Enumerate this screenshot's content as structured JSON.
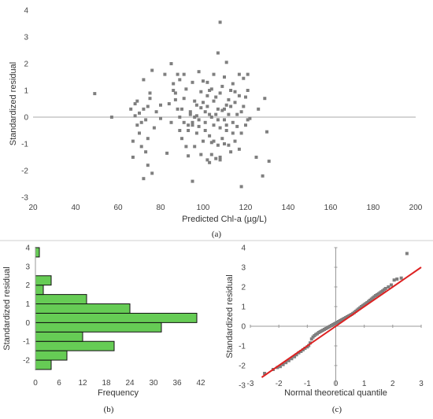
{
  "chart_data": [
    {
      "type": "scatter",
      "panel_label": "a",
      "xlabel": "Predicted Chl-a (µg/L)",
      "ylabel": "Standardized residual",
      "xlim": [
        20,
        200
      ],
      "ylim": [
        -3,
        4
      ],
      "xticks": [
        20,
        40,
        60,
        80,
        100,
        120,
        140,
        160,
        180,
        200
      ],
      "yticks": [
        -3,
        -2,
        -1,
        0,
        1,
        2,
        3,
        4
      ],
      "reference_line_y": 0,
      "marker_color": "#7f7f7f",
      "points": [
        [
          49,
          0.88
        ],
        [
          57,
          0
        ],
        [
          66,
          0.3
        ],
        [
          67,
          -1.5
        ],
        [
          67,
          -0.9
        ],
        [
          68,
          0.5
        ],
        [
          68,
          0.05
        ],
        [
          69,
          -0.3
        ],
        [
          69,
          0.6
        ],
        [
          70,
          -0.6
        ],
        [
          70,
          0.15
        ],
        [
          71,
          -1.1
        ],
        [
          71,
          -0.2
        ],
        [
          72,
          1.4
        ],
        [
          72,
          0.3
        ],
        [
          72,
          -2.3
        ],
        [
          73,
          -0.1
        ],
        [
          73,
          -1.3
        ],
        [
          74,
          0.4
        ],
        [
          74,
          -1.8
        ],
        [
          74,
          -0.8
        ],
        [
          75,
          0.7
        ],
        [
          75,
          0.9
        ],
        [
          76,
          1.75
        ],
        [
          76,
          -2.1
        ],
        [
          77,
          -0.4
        ],
        [
          78,
          0.2
        ],
        [
          80,
          0.45
        ],
        [
          80,
          -0.05
        ],
        [
          82,
          1.6
        ],
        [
          83,
          -1.35
        ],
        [
          84,
          0.5
        ],
        [
          85,
          -0.2
        ],
        [
          85,
          2
        ],
        [
          86,
          1.25
        ],
        [
          86,
          1.0
        ],
        [
          87,
          0.9
        ],
        [
          87,
          0.65
        ],
        [
          88,
          1.6
        ],
        [
          88,
          0.3
        ],
        [
          89,
          -0.5
        ],
        [
          89,
          1.4
        ],
        [
          89,
          0.0
        ],
        [
          90,
          -0.8
        ],
        [
          90,
          0.3
        ],
        [
          91,
          1.6
        ],
        [
          91,
          -0.2
        ],
        [
          91,
          0.7
        ],
        [
          92,
          -1.1
        ],
        [
          92,
          1.05
        ],
        [
          93,
          -0.5
        ],
        [
          93,
          -1.45
        ],
        [
          93,
          -0.3
        ],
        [
          94,
          0.1
        ],
        [
          94,
          0.2
        ],
        [
          95,
          -0.2
        ],
        [
          95,
          -0.3
        ],
        [
          95,
          1.3
        ],
        [
          95,
          -2.4
        ],
        [
          96,
          -1.1
        ],
        [
          96,
          0.6
        ],
        [
          97,
          0.45
        ],
        [
          97,
          -0.6
        ],
        [
          97,
          0.05
        ],
        [
          98,
          -0.35
        ],
        [
          98,
          1.7
        ],
        [
          98,
          -0.1
        ],
        [
          99,
          0.95
        ],
        [
          99,
          -1.4
        ],
        [
          99,
          0.35
        ],
        [
          100,
          -0.9
        ],
        [
          100,
          0.55
        ],
        [
          100,
          1.35
        ],
        [
          101,
          0.2
        ],
        [
          101,
          -0.2
        ],
        [
          101,
          -0.5
        ],
        [
          102,
          -1.6
        ],
        [
          102,
          1.3
        ],
        [
          102,
          0.4
        ],
        [
          103,
          -0.7
        ],
        [
          103,
          -1.7
        ],
        [
          103,
          1.0
        ],
        [
          103,
          0.1
        ],
        [
          104,
          1.05
        ],
        [
          104,
          0.0
        ],
        [
          104,
          -0.95
        ],
        [
          104,
          -1.4
        ],
        [
          105,
          1.6
        ],
        [
          105,
          -0.9
        ],
        [
          105,
          0.6
        ],
        [
          105,
          -0.3
        ],
        [
          106,
          -1.55
        ],
        [
          106,
          0.75
        ],
        [
          106,
          0.1
        ],
        [
          107,
          2.4
        ],
        [
          107,
          -0.1
        ],
        [
          107,
          -1.05
        ],
        [
          107,
          0.3
        ],
        [
          108,
          -1.6
        ],
        [
          108,
          0.9
        ],
        [
          108,
          3.55
        ],
        [
          108,
          -1.5
        ],
        [
          108,
          -0.4
        ],
        [
          109,
          1.15
        ],
        [
          109,
          0.25
        ],
        [
          109,
          -0.8
        ],
        [
          110,
          0.3
        ],
        [
          110,
          -1.0
        ],
        [
          110,
          1.5
        ],
        [
          111,
          -0.5
        ],
        [
          111,
          0.45
        ],
        [
          111,
          2.05
        ],
        [
          111,
          -0.3
        ],
        [
          112,
          -1.05
        ],
        [
          112,
          0.65
        ],
        [
          112,
          0.1
        ],
        [
          113,
          1.0
        ],
        [
          113,
          -1.3
        ],
        [
          113,
          0.4
        ],
        [
          114,
          -0.2
        ],
        [
          114,
          1.25
        ],
        [
          114,
          -0.6
        ],
        [
          115,
          0.55
        ],
        [
          115,
          -0.9
        ],
        [
          115,
          0.95
        ],
        [
          116,
          0.1
        ],
        [
          116,
          -0.35
        ],
        [
          117,
          0.8
        ],
        [
          117,
          1.6
        ],
        [
          117,
          -1.2
        ],
        [
          118,
          -2.6
        ],
        [
          118,
          0.2
        ],
        [
          118,
          -0.6
        ],
        [
          119,
          0.4
        ],
        [
          119,
          1.45
        ],
        [
          120,
          -0.3
        ],
        [
          120,
          0.75
        ],
        [
          121,
          1.0
        ],
        [
          121,
          -0.1
        ],
        [
          122,
          -0.05
        ],
        [
          125,
          -1.5
        ],
        [
          126,
          0.3
        ],
        [
          128,
          -2.2
        ],
        [
          129,
          0.7
        ],
        [
          130,
          -0.55
        ],
        [
          131,
          -1.65
        ],
        [
          121,
          1.6
        ],
        [
          102,
          0.8
        ],
        [
          110,
          -0.1
        ],
        [
          96,
          0.0
        ]
      ]
    },
    {
      "type": "bar",
      "orientation": "horizontal",
      "panel_label": "b",
      "xlabel": "Frequency",
      "ylabel": "Standardized residual",
      "xlim": [
        0,
        42
      ],
      "ylim": [
        -2.5,
        4
      ],
      "xticks": [
        0,
        6,
        12,
        18,
        24,
        30,
        36,
        42
      ],
      "yticks": [
        -2,
        -1,
        0,
        1,
        2,
        3,
        4
      ],
      "bin_width": 0.5,
      "bar_color": "#66cc55",
      "bins": [
        {
          "lower": -2.5,
          "value": 4
        },
        {
          "lower": -2.0,
          "value": 8
        },
        {
          "lower": -1.5,
          "value": 20
        },
        {
          "lower": -1.0,
          "value": 12
        },
        {
          "lower": -0.5,
          "value": 32
        },
        {
          "lower": 0.0,
          "value": 41
        },
        {
          "lower": 0.5,
          "value": 24
        },
        {
          "lower": 1.0,
          "value": 13
        },
        {
          "lower": 1.5,
          "value": 2
        },
        {
          "lower": 2.0,
          "value": 4
        },
        {
          "lower": 2.5,
          "value": 0
        },
        {
          "lower": 3.0,
          "value": 0
        },
        {
          "lower": 3.5,
          "value": 1
        }
      ]
    },
    {
      "type": "scatter",
      "panel_label": "c",
      "xlabel": "Normal theoretical quantile",
      "ylabel": "Standardized residual",
      "xlim": [
        -3,
        3
      ],
      "ylim": [
        -3,
        4
      ],
      "xticks": [
        -3,
        -2,
        -1,
        0,
        1,
        2,
        3
      ],
      "yticks": [
        -3,
        -2,
        -1,
        0,
        1,
        2,
        3,
        4
      ],
      "marker_color": "#7f7f7f",
      "fit_line": {
        "x": [
          -2.6,
          3.0
        ],
        "y": [
          -2.6,
          3.0
        ],
        "color": "#dd2222"
      },
      "points": [
        [
          -2.5,
          -2.4
        ],
        [
          -2.2,
          -2.2
        ],
        [
          -2.05,
          -2.1
        ],
        [
          -1.95,
          -2.05
        ],
        [
          -1.85,
          -1.95
        ],
        [
          -1.75,
          -1.85
        ],
        [
          -1.65,
          -1.75
        ],
        [
          -1.55,
          -1.65
        ],
        [
          -1.45,
          -1.55
        ],
        [
          -1.38,
          -1.45
        ],
        [
          -1.3,
          -1.35
        ],
        [
          -1.22,
          -1.28
        ],
        [
          -1.15,
          -1.2
        ],
        [
          -1.08,
          -1.12
        ],
        [
          -1.0,
          -1.05
        ],
        [
          -0.95,
          -0.98
        ],
        [
          -0.9,
          -0.85
        ],
        [
          -0.85,
          -0.65
        ],
        [
          -0.8,
          -0.55
        ],
        [
          -0.75,
          -0.48
        ],
        [
          -0.7,
          -0.42
        ],
        [
          -0.65,
          -0.38
        ],
        [
          -0.6,
          -0.32
        ],
        [
          -0.55,
          -0.28
        ],
        [
          -0.5,
          -0.24
        ],
        [
          -0.45,
          -0.2
        ],
        [
          -0.4,
          -0.16
        ],
        [
          -0.35,
          -0.12
        ],
        [
          -0.3,
          -0.08
        ],
        [
          -0.25,
          -0.04
        ],
        [
          -0.2,
          0.0
        ],
        [
          -0.15,
          0.04
        ],
        [
          -0.1,
          0.08
        ],
        [
          -0.05,
          0.12
        ],
        [
          0.0,
          0.16
        ],
        [
          0.05,
          0.2
        ],
        [
          0.1,
          0.24
        ],
        [
          0.15,
          0.28
        ],
        [
          0.2,
          0.32
        ],
        [
          0.25,
          0.36
        ],
        [
          0.3,
          0.4
        ],
        [
          0.35,
          0.44
        ],
        [
          0.4,
          0.48
        ],
        [
          0.45,
          0.52
        ],
        [
          0.5,
          0.56
        ],
        [
          0.55,
          0.6
        ],
        [
          0.6,
          0.65
        ],
        [
          0.65,
          0.7
        ],
        [
          0.7,
          0.76
        ],
        [
          0.75,
          0.82
        ],
        [
          0.8,
          0.88
        ],
        [
          0.85,
          0.94
        ],
        [
          0.9,
          1.0
        ],
        [
          0.95,
          1.05
        ],
        [
          1.0,
          1.1
        ],
        [
          1.05,
          1.15
        ],
        [
          1.1,
          1.2
        ],
        [
          1.15,
          1.26
        ],
        [
          1.2,
          1.32
        ],
        [
          1.25,
          1.38
        ],
        [
          1.3,
          1.44
        ],
        [
          1.35,
          1.5
        ],
        [
          1.4,
          1.56
        ],
        [
          1.45,
          1.6
        ],
        [
          1.5,
          1.65
        ],
        [
          1.55,
          1.7
        ],
        [
          1.6,
          1.75
        ],
        [
          1.65,
          1.8
        ],
        [
          1.7,
          1.86
        ],
        [
          1.75,
          1.92
        ],
        [
          1.85,
          2.0
        ],
        [
          1.95,
          2.1
        ],
        [
          2.05,
          2.35
        ],
        [
          2.15,
          2.4
        ],
        [
          2.3,
          2.45
        ],
        [
          2.5,
          3.7
        ]
      ]
    }
  ],
  "captions": {
    "a": "(a)",
    "b": "(b)",
    "c": "(c)"
  }
}
